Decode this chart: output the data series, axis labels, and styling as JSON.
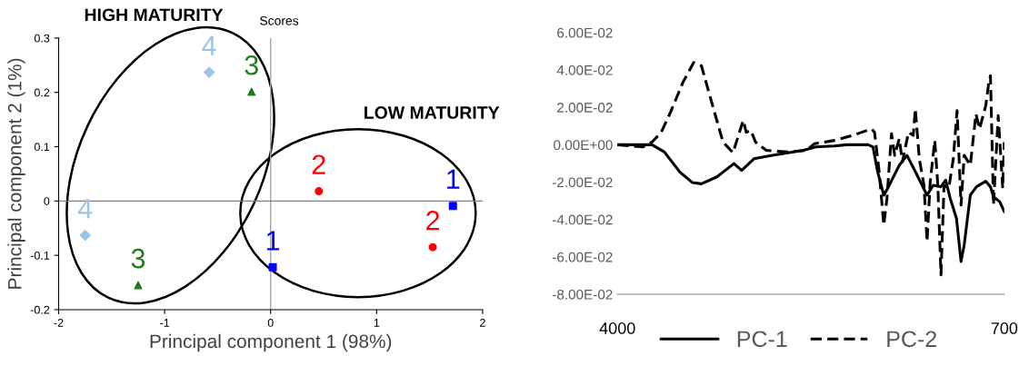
{
  "chart_data": [
    {
      "type": "scatter",
      "title": "Scores",
      "xlabel": "Principal component 1 (98%)",
      "ylabel": "Principal component 2 (1%)",
      "xlim": [
        -2,
        2
      ],
      "ylim": [
        -0.2,
        0.3
      ],
      "xticks": [
        -2,
        -1,
        0,
        1,
        2
      ],
      "yticks": [
        -0.2,
        -0.1,
        0,
        0.1,
        0.2,
        0.3
      ],
      "grid": false,
      "legend": false,
      "ref_lines": [
        {
          "axis": "x",
          "value": 0,
          "color": "#a6a6a6"
        },
        {
          "axis": "y",
          "value": 0,
          "color": "#808080"
        }
      ],
      "annotations": [
        {
          "text": "HIGH MATURITY"
        },
        {
          "text": "LOW MATURITY"
        },
        {
          "text": "4",
          "x": -1.75,
          "y": -0.063
        },
        {
          "text": "4",
          "x": -0.58,
          "y": 0.237
        },
        {
          "text": "3",
          "x": -0.18,
          "y": 0.201
        },
        {
          "text": "3",
          "x": -1.25,
          "y": -0.155
        },
        {
          "text": "2",
          "x": 0.455,
          "y": 0.018
        },
        {
          "text": "2",
          "x": 1.53,
          "y": -0.085
        },
        {
          "text": "1",
          "x": 0.02,
          "y": -0.122
        },
        {
          "text": "1",
          "x": 1.72,
          "y": -0.009
        }
      ],
      "series": [
        {
          "color": "#9dc3e6",
          "marker": "diamond",
          "x": [
            -1.75,
            -0.58
          ],
          "values": [
            -0.063,
            0.237
          ]
        },
        {
          "color": "#1e7b1e",
          "marker": "triangle",
          "x": [
            -0.18,
            -1.25
          ],
          "values": [
            0.201,
            -0.155
          ]
        },
        {
          "color": "#ff0000",
          "marker": "circle",
          "x": [
            0.455,
            1.53
          ],
          "values": [
            0.018,
            -0.085
          ]
        },
        {
          "color": "#0000ff",
          "marker": "square",
          "x": [
            0.02,
            1.72
          ],
          "values": [
            -0.122,
            -0.009
          ]
        }
      ]
    },
    {
      "type": "line",
      "xlim": [
        4000,
        700
      ],
      "xticks": [
        4000,
        700
      ],
      "ylim": [
        -0.08,
        0.06
      ],
      "yticks": [
        {
          "value": -0.08,
          "label": "-8.00E-02"
        },
        {
          "value": -0.06,
          "label": "-6.00E-02"
        },
        {
          "value": -0.04,
          "label": "-4.00E-02"
        },
        {
          "value": -0.02,
          "label": "-2.00E-02"
        },
        {
          "value": 0,
          "label": "0.00E+00"
        },
        {
          "value": 0.02,
          "label": "2.00E-02"
        },
        {
          "value": 0.04,
          "label": "4.00E-02"
        },
        {
          "value": 0.06,
          "label": "6.00E-02"
        }
      ],
      "grid": false,
      "legend": "bottom",
      "marker": "none",
      "series": [
        {
          "name": "PC-1",
          "color": "#000000",
          "line_style": "solid",
          "x": [
            4000,
            3705,
            3599,
            3468,
            3362,
            3283,
            3151,
            3006,
            2940,
            2835,
            2677,
            2413,
            2308,
            2150,
            2044,
            1860,
            1820,
            1780,
            1728,
            1688,
            1596,
            1530,
            1451,
            1359,
            1306,
            1240,
            1200,
            1161,
            1108,
            1069,
            1042,
            990,
            937,
            858,
            818,
            792,
            739,
            700
          ],
          "values": [
            0,
            0,
            -0.0039,
            -0.0146,
            -0.0202,
            -0.0209,
            -0.0172,
            -0.0101,
            -0.0137,
            -0.0075,
            -0.0057,
            -0.003,
            -0.0012,
            -0.0007,
            0,
            0,
            -0.0012,
            -0.0146,
            -0.027,
            -0.0225,
            -0.011,
            -0.0057,
            -0.0154,
            -0.027,
            -0.0217,
            -0.0225,
            -0.019,
            -0.0288,
            -0.0394,
            -0.0625,
            -0.0536,
            -0.027,
            -0.0225,
            -0.0195,
            -0.0225,
            -0.0279,
            -0.0305,
            -0.0358
          ]
        },
        {
          "name": "PC-2",
          "color": "#000000",
          "line_style": "dashed",
          "x": [
            4000,
            3784,
            3705,
            3626,
            3547,
            3441,
            3349,
            3283,
            3204,
            3099,
            3014,
            2927,
            2901,
            2861,
            2822,
            2730,
            2545,
            2387,
            2321,
            2150,
            1992,
            1833,
            1807,
            1767,
            1728,
            1701,
            1662,
            1635,
            1596,
            1569,
            1517,
            1477,
            1459,
            1425,
            1385,
            1359,
            1332,
            1293,
            1267,
            1240,
            1214,
            1174,
            1135,
            1103,
            1069,
            1042,
            990,
            942,
            911,
            858,
            832,
            818,
            792,
            752,
            713,
            700
          ],
          "values": [
            0,
            -0.0012,
            0.0014,
            0.0067,
            0.0174,
            0.0334,
            0.044,
            0.0422,
            0.0245,
            0.0014,
            -0.0043,
            0.013,
            0.0067,
            0.0076,
            0.0014,
            -0.003,
            -0.0039,
            -0.003,
            0.0005,
            0.0023,
            0.005,
            0.0085,
            0.0067,
            -0.0146,
            -0.043,
            -0.0288,
            0.0059,
            -0.0057,
            0.0032,
            -0.0092,
            0.0067,
            0.005,
            0.0192,
            -0.0075,
            -0.0217,
            -0.0518,
            -0.0199,
            0.0023,
            -0.0217,
            -0.0696,
            -0.0217,
            -0.0234,
            -0.0075,
            0.0183,
            -0.0323,
            -0.0057,
            -0.011,
            0.0165,
            0.0085,
            0.021,
            0.0334,
            0.0369,
            -0.0323,
            0.0156,
            -0.0234,
            0.0014
          ]
        }
      ]
    }
  ]
}
